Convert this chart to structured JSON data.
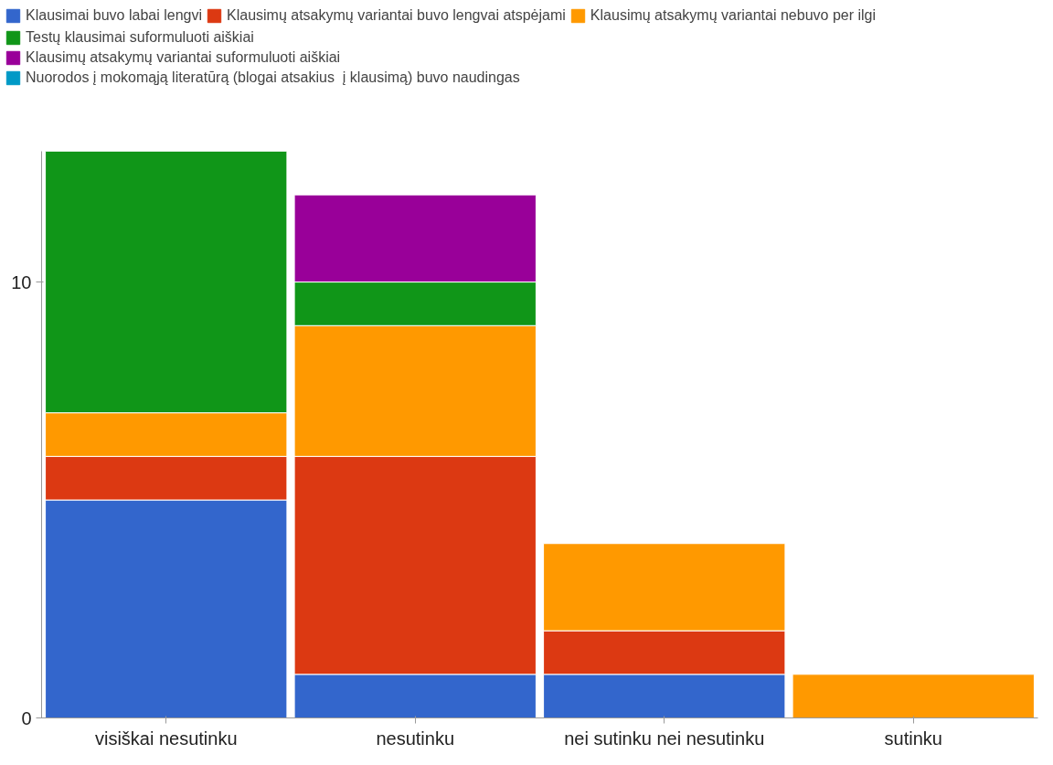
{
  "chart_data": {
    "type": "bar",
    "stacked": true,
    "categories": [
      "visiškai nesutinku",
      "nesutinku",
      "nei sutinku nei nesutinku",
      "sutinku"
    ],
    "series": [
      {
        "name": "Klausimai buvo labai lengvi",
        "color": "#3366cc",
        "values": [
          5,
          1,
          1,
          0
        ]
      },
      {
        "name": "Klausimų atsakymų variantai buvo lengvai atspėjami",
        "color": "#dc3912",
        "values": [
          1,
          5,
          1,
          0
        ]
      },
      {
        "name": "Klausimų atsakymų variantai nebuvo per ilgi",
        "color": "#ff9900",
        "values": [
          1,
          3,
          2,
          1
        ]
      },
      {
        "name": "Testų klausimai suformuluoti aiškiai",
        "color": "#109618",
        "values": [
          6,
          1,
          0,
          0
        ]
      },
      {
        "name": "Klausimų atsakymų variantai suformuluoti aiškiai",
        "color": "#990099",
        "values": [
          0,
          2,
          0,
          0
        ]
      },
      {
        "name": "Nuorodos į mokomąją literatūrą (blogai atsakius  į klausimą) buvo naudingas",
        "color": "#0099c6",
        "values": [
          0,
          0,
          0,
          0
        ]
      }
    ],
    "ylim": [
      0,
      13
    ],
    "yticks": [
      0,
      10
    ],
    "grid": false,
    "legend": "top"
  }
}
